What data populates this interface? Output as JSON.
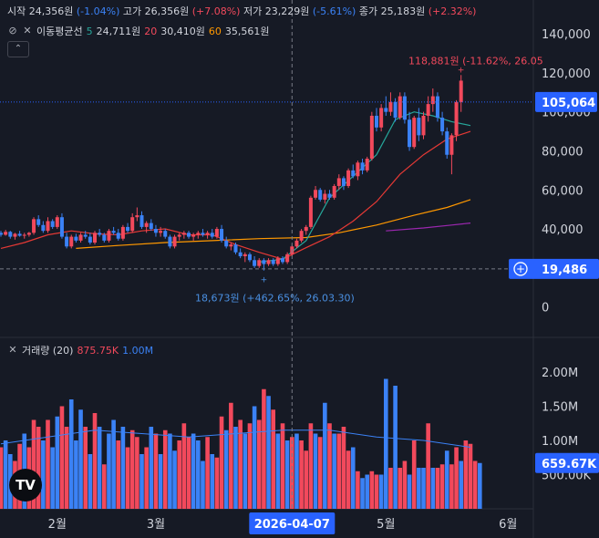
{
  "ohlc_legend": {
    "open_label": "시작",
    "open_value": "24,356원",
    "open_change": "(-1.04%)",
    "high_label": "고가",
    "high_value": "26,356원",
    "high_change": "(+7.08%)",
    "low_label": "저가",
    "low_value": "23,229원",
    "low_change": "(-5.61%)",
    "close_label": "종가",
    "close_value": "25,183원",
    "close_change": "(+2.32%)"
  },
  "ma_legend": {
    "title": "이동평균선",
    "items": [
      {
        "period": "5",
        "value": "24,711원",
        "color": "#26a69a"
      },
      {
        "period": "20",
        "value": "30,410원",
        "color": "#f2495c"
      },
      {
        "period": "60",
        "value": "35,561원",
        "color": "#ff9800"
      }
    ]
  },
  "volume_legend": {
    "title": "거래량 (20)",
    "value1": "875.75K",
    "value2": "1.00M"
  },
  "colors": {
    "up": "#f2495c",
    "down": "#3b82f6",
    "ma5": "#26a69a",
    "ma20": "#e53935",
    "ma60": "#ff9800",
    "ma120": "#9c27b0",
    "vol_ma": "#3b82f6",
    "background": "#161a25",
    "price_badge": "#2962ff"
  },
  "chart_data": {
    "type": "candlestick",
    "price_axis": {
      "ticks": [
        "140,000",
        "120,000",
        "100,000",
        "80,000",
        "60,000",
        "40,000",
        "0"
      ],
      "tick_values": [
        140000,
        120000,
        100000,
        80000,
        60000,
        40000,
        0
      ],
      "range": [
        -10000,
        148000
      ]
    },
    "volume_axis": {
      "ticks": [
        "2.00M",
        "1.50M",
        "1.00M",
        "500.00K"
      ],
      "tick_values": [
        2000000,
        1500000,
        1000000,
        500000
      ],
      "range": [
        0,
        2200000
      ]
    },
    "x_axis": {
      "ticks": [
        {
          "label": "2월",
          "index": 12
        },
        {
          "label": "3월",
          "index": 33
        },
        {
          "label": "5월",
          "index": 82
        },
        {
          "label": "6월",
          "index": 108
        }
      ],
      "crosshair_label": "2026-04-07",
      "crosshair_index": 62
    },
    "current_price": {
      "label": "105,064",
      "value": 105064
    },
    "crosshair_price": {
      "label": "19,486",
      "value": 19486
    },
    "annotations": {
      "high": {
        "text": "118,881원 (-11.62%, 26.05",
        "value": 118881,
        "index": 98
      },
      "low": {
        "text": "18,673원 (+462.65%, 26.03.30)",
        "value": 18673,
        "index": 56
      }
    },
    "candles": [
      [
        38000,
        39000,
        36000,
        37000
      ],
      [
        37000,
        39500,
        36500,
        38500
      ],
      [
        38500,
        39000,
        35000,
        36000
      ],
      [
        36000,
        38000,
        34500,
        37500
      ],
      [
        37500,
        39000,
        36000,
        36500
      ],
      [
        36500,
        38000,
        35000,
        37000
      ],
      [
        37000,
        38500,
        36000,
        38000
      ],
      [
        38000,
        46000,
        37000,
        45000
      ],
      [
        45000,
        47000,
        41000,
        42000
      ],
      [
        42000,
        44000,
        38000,
        39000
      ],
      [
        39000,
        46000,
        38000,
        44000
      ],
      [
        44000,
        45000,
        40000,
        41000
      ],
      [
        41000,
        47000,
        40000,
        46000
      ],
      [
        46000,
        48000,
        35000,
        36000
      ],
      [
        36000,
        38000,
        30000,
        31000
      ],
      [
        31000,
        37000,
        30000,
        36000
      ],
      [
        36000,
        37500,
        33000,
        34000
      ],
      [
        34000,
        38000,
        33000,
        37000
      ],
      [
        37000,
        39000,
        35000,
        36000
      ],
      [
        36000,
        38000,
        32000,
        33000
      ],
      [
        33000,
        39000,
        32000,
        38000
      ],
      [
        38000,
        40000,
        36000,
        37000
      ],
      [
        37000,
        38000,
        33000,
        34000
      ],
      [
        34000,
        40000,
        33000,
        39000
      ],
      [
        39000,
        41000,
        37000,
        38000
      ],
      [
        38000,
        40000,
        34000,
        35000
      ],
      [
        35000,
        42000,
        34000,
        41000
      ],
      [
        41000,
        43000,
        38000,
        39000
      ],
      [
        39000,
        48000,
        38000,
        46000
      ],
      [
        46000,
        51000,
        44000,
        47000
      ],
      [
        47000,
        49000,
        40000,
        41000
      ],
      [
        41000,
        44000,
        38000,
        43000
      ],
      [
        43000,
        45000,
        39000,
        40000
      ],
      [
        40000,
        42000,
        36000,
        38000
      ],
      [
        38000,
        41000,
        36000,
        39000
      ],
      [
        39000,
        40000,
        35000,
        36000
      ],
      [
        36000,
        37000,
        30000,
        31000
      ],
      [
        31000,
        37000,
        30000,
        36000
      ],
      [
        36000,
        38000,
        34000,
        37000
      ],
      [
        37000,
        39000,
        35000,
        38000
      ],
      [
        38000,
        39000,
        35000,
        36000
      ],
      [
        36000,
        38000,
        34000,
        37000
      ],
      [
        37000,
        39000,
        35000,
        38000
      ],
      [
        38000,
        40000,
        36000,
        37000
      ],
      [
        37000,
        39000,
        35000,
        38000
      ],
      [
        38000,
        40000,
        35000,
        36000
      ],
      [
        36000,
        41000,
        35000,
        40000
      ],
      [
        40000,
        42000,
        33000,
        34000
      ],
      [
        34000,
        36000,
        30000,
        31000
      ],
      [
        31000,
        33000,
        29000,
        32000
      ],
      [
        32000,
        33000,
        27000,
        28000
      ],
      [
        28000,
        30000,
        25000,
        26000
      ],
      [
        26000,
        28000,
        23000,
        27000
      ],
      [
        27000,
        28000,
        23000,
        24000
      ],
      [
        24000,
        26000,
        20000,
        21000
      ],
      [
        21000,
        25000,
        20000,
        24000
      ],
      [
        24000,
        25000,
        18673,
        22000
      ],
      [
        22000,
        25000,
        21000,
        24000
      ],
      [
        24000,
        25000,
        21000,
        22000
      ],
      [
        22000,
        26000,
        21000,
        25000
      ],
      [
        25000,
        26000,
        22000,
        23000
      ],
      [
        23000,
        28000,
        22000,
        27000
      ],
      [
        27000,
        32000,
        26000,
        31000
      ],
      [
        31000,
        35000,
        30000,
        34000
      ],
      [
        34000,
        40000,
        33000,
        39000
      ],
      [
        39000,
        42000,
        37000,
        41000
      ],
      [
        41000,
        57000,
        40000,
        56000
      ],
      [
        56000,
        62000,
        55000,
        60000
      ],
      [
        60000,
        61000,
        54000,
        55000
      ],
      [
        55000,
        60000,
        53000,
        58000
      ],
      [
        58000,
        60000,
        55000,
        56000
      ],
      [
        56000,
        63000,
        55000,
        62000
      ],
      [
        62000,
        68000,
        60000,
        66000
      ],
      [
        66000,
        67000,
        60000,
        62000
      ],
      [
        62000,
        71000,
        61000,
        70000
      ],
      [
        70000,
        73000,
        66000,
        67000
      ],
      [
        67000,
        75000,
        65000,
        74000
      ],
      [
        74000,
        76000,
        68000,
        70000
      ],
      [
        70000,
        77000,
        69000,
        76000
      ],
      [
        76000,
        100000,
        75000,
        98000
      ],
      [
        98000,
        102000,
        90000,
        92000
      ],
      [
        92000,
        104000,
        90000,
        102000
      ],
      [
        102000,
        108000,
        98000,
        100000
      ],
      [
        100000,
        110000,
        98000,
        105000
      ],
      [
        105000,
        107000,
        95000,
        97000
      ],
      [
        97000,
        110000,
        96000,
        108000
      ],
      [
        108000,
        110000,
        94000,
        96000
      ],
      [
        96000,
        100000,
        80000,
        82000
      ],
      [
        82000,
        98000,
        81000,
        97000
      ],
      [
        97000,
        102000,
        85000,
        88000
      ],
      [
        88000,
        100000,
        86000,
        98000
      ],
      [
        98000,
        108000,
        95000,
        104000
      ],
      [
        104000,
        112000,
        100000,
        108000
      ],
      [
        108000,
        110000,
        95000,
        97000
      ],
      [
        97000,
        100000,
        88000,
        90000
      ],
      [
        90000,
        92000,
        76000,
        78000
      ],
      [
        78000,
        89000,
        68000,
        88000
      ],
      [
        88000,
        106000,
        85000,
        105000
      ],
      [
        105000,
        118881,
        100000,
        116000
      ]
    ],
    "volumes": [
      [
        900000,
        "u"
      ],
      [
        1000000,
        "d"
      ],
      [
        800000,
        "d"
      ],
      [
        700000,
        "u"
      ],
      [
        950000,
        "u"
      ],
      [
        1100000,
        "d"
      ],
      [
        900000,
        "u"
      ],
      [
        1300000,
        "u"
      ],
      [
        1200000,
        "u"
      ],
      [
        1000000,
        "d"
      ],
      [
        1300000,
        "u"
      ],
      [
        900000,
        "d"
      ],
      [
        1350000,
        "d"
      ],
      [
        1500000,
        "u"
      ],
      [
        1200000,
        "u"
      ],
      [
        1600000,
        "d"
      ],
      [
        1000000,
        "d"
      ],
      [
        1450000,
        "d"
      ],
      [
        1200000,
        "u"
      ],
      [
        800000,
        "d"
      ],
      [
        1400000,
        "u"
      ],
      [
        1200000,
        "d"
      ],
      [
        650000,
        "u"
      ],
      [
        1100000,
        "d"
      ],
      [
        1300000,
        "d"
      ],
      [
        1000000,
        "u"
      ],
      [
        1200000,
        "d"
      ],
      [
        900000,
        "u"
      ],
      [
        1150000,
        "u"
      ],
      [
        1050000,
        "u"
      ],
      [
        800000,
        "d"
      ],
      [
        900000,
        "u"
      ],
      [
        1200000,
        "d"
      ],
      [
        1100000,
        "u"
      ],
      [
        800000,
        "d"
      ],
      [
        1150000,
        "u"
      ],
      [
        1100000,
        "d"
      ],
      [
        850000,
        "d"
      ],
      [
        1000000,
        "u"
      ],
      [
        1250000,
        "u"
      ],
      [
        1050000,
        "u"
      ],
      [
        1100000,
        "d"
      ],
      [
        1000000,
        "d"
      ],
      [
        700000,
        "d"
      ],
      [
        1050000,
        "u"
      ],
      [
        800000,
        "d"
      ],
      [
        750000,
        "u"
      ],
      [
        1350000,
        "u"
      ],
      [
        1150000,
        "d"
      ],
      [
        1550000,
        "u"
      ],
      [
        1200000,
        "d"
      ],
      [
        1300000,
        "u"
      ],
      [
        1100000,
        "d"
      ],
      [
        1250000,
        "u"
      ],
      [
        1500000,
        "d"
      ],
      [
        1300000,
        "u"
      ],
      [
        1750000,
        "u"
      ],
      [
        1650000,
        "d"
      ],
      [
        1450000,
        "u"
      ],
      [
        1100000,
        "d"
      ],
      [
        1250000,
        "u"
      ],
      [
        1000000,
        "d"
      ],
      [
        1050000,
        "u"
      ],
      [
        1100000,
        "d"
      ],
      [
        1000000,
        "u"
      ],
      [
        850000,
        "u"
      ],
      [
        1250000,
        "u"
      ],
      [
        1100000,
        "d"
      ],
      [
        1050000,
        "u"
      ],
      [
        1550000,
        "d"
      ],
      [
        1250000,
        "u"
      ],
      [
        1100000,
        "d"
      ],
      [
        1100000,
        "u"
      ],
      [
        1200000,
        "u"
      ],
      [
        850000,
        "u"
      ],
      [
        900000,
        "d"
      ],
      [
        550000,
        "u"
      ],
      [
        450000,
        "d"
      ],
      [
        500000,
        "d"
      ],
      [
        550000,
        "u"
      ],
      [
        500000,
        "u"
      ],
      [
        500000,
        "d"
      ],
      [
        1900000,
        "d"
      ],
      [
        600000,
        "u"
      ],
      [
        1800000,
        "d"
      ],
      [
        600000,
        "u"
      ],
      [
        700000,
        "u"
      ],
      [
        500000,
        "d"
      ],
      [
        1000000,
        "u"
      ],
      [
        600000,
        "d"
      ],
      [
        600000,
        "d"
      ],
      [
        1250000,
        "u"
      ],
      [
        600000,
        "d"
      ],
      [
        600000,
        "u"
      ],
      [
        650000,
        "u"
      ],
      [
        850000,
        "d"
      ],
      [
        650000,
        "u"
      ],
      [
        900000,
        "u"
      ],
      [
        700000,
        "d"
      ],
      [
        1000000,
        "u"
      ],
      [
        950000,
        "u"
      ],
      [
        700000,
        "u"
      ],
      [
        670000,
        "d"
      ]
    ],
    "ma5": [
      [
        55,
        23000
      ],
      [
        60,
        24500
      ],
      [
        65,
        34000
      ],
      [
        70,
        56000
      ],
      [
        75,
        67000
      ],
      [
        80,
        78000
      ],
      [
        84,
        96000
      ],
      [
        88,
        100000
      ],
      [
        92,
        98000
      ],
      [
        96,
        95000
      ],
      [
        100,
        93000
      ]
    ],
    "ma20": [
      [
        0,
        30000
      ],
      [
        5,
        33000
      ],
      [
        10,
        37000
      ],
      [
        15,
        39000
      ],
      [
        20,
        37500
      ],
      [
        25,
        37000
      ],
      [
        30,
        39000
      ],
      [
        35,
        40000
      ],
      [
        40,
        37000
      ],
      [
        45,
        37000
      ],
      [
        50,
        32000
      ],
      [
        55,
        28000
      ],
      [
        60,
        24500
      ],
      [
        65,
        30410
      ],
      [
        70,
        36000
      ],
      [
        75,
        44000
      ],
      [
        80,
        54000
      ],
      [
        85,
        68000
      ],
      [
        90,
        78000
      ],
      [
        95,
        86000
      ],
      [
        100,
        90000
      ]
    ],
    "ma60": [
      [
        16,
        30000
      ],
      [
        25,
        31500
      ],
      [
        35,
        33000
      ],
      [
        45,
        34000
      ],
      [
        55,
        35000
      ],
      [
        65,
        35561
      ],
      [
        72,
        38000
      ],
      [
        80,
        42000
      ],
      [
        88,
        47000
      ],
      [
        95,
        51000
      ],
      [
        100,
        55000
      ]
    ],
    "ma120": [
      [
        82,
        39000
      ],
      [
        90,
        40500
      ],
      [
        96,
        42000
      ],
      [
        100,
        43000
      ]
    ],
    "vol_ma": [
      [
        0,
        950000
      ],
      [
        10,
        1050000
      ],
      [
        20,
        1150000
      ],
      [
        30,
        1100000
      ],
      [
        40,
        1050000
      ],
      [
        50,
        1100000
      ],
      [
        60,
        1150000
      ],
      [
        70,
        1150000
      ],
      [
        80,
        1050000
      ],
      [
        90,
        1000000
      ],
      [
        100,
        900000
      ]
    ]
  }
}
